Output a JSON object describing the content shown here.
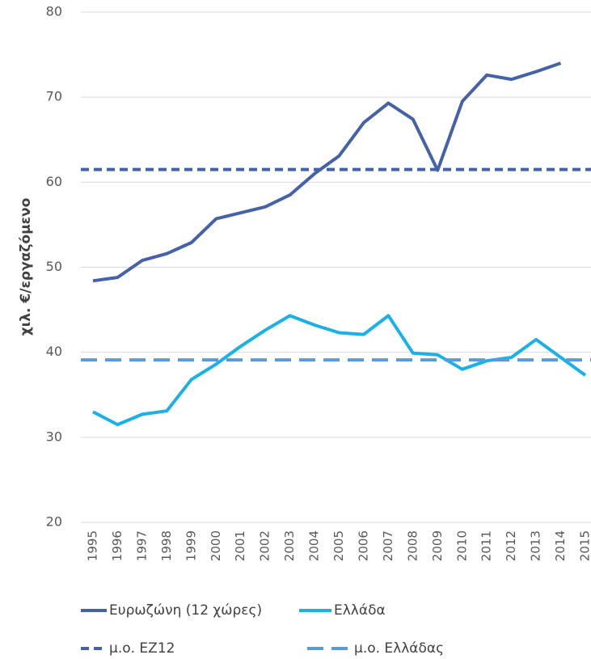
{
  "chart_data": {
    "type": "line",
    "y_label": "χιλ. €/εργαζόμενο",
    "categories": [
      "1995",
      "1996",
      "1997",
      "1998",
      "1999",
      "2000",
      "2001",
      "2002",
      "2003",
      "2004",
      "2005",
      "2006",
      "2007",
      "2008",
      "2009",
      "2010",
      "2011",
      "2012",
      "2013",
      "2014",
      "2015"
    ],
    "series": [
      {
        "name": "Ευρωζώνη (12 χώρες)",
        "color": "#4562a8",
        "dashed": false,
        "values": [
          48.4,
          48.8,
          50.8,
          51.6,
          52.9,
          55.7,
          56.4,
          57.1,
          58.5,
          61.0,
          63.1,
          67.0,
          69.3,
          67.4,
          61.4,
          69.5,
          72.6,
          72.1,
          73.0,
          74.0,
          null
        ]
      },
      {
        "name": "Ελλάδα",
        "color": "#1ab0e8",
        "dashed": false,
        "values": [
          33.0,
          31.5,
          32.7,
          33.1,
          36.8,
          38.6,
          40.7,
          42.6,
          44.3,
          43.2,
          42.3,
          42.1,
          44.3,
          39.9,
          39.7,
          38.0,
          39.0,
          39.4,
          41.5,
          39.4,
          37.3
        ]
      },
      {
        "name": "μ.ο. ΕΖ12",
        "color": "#4562a8",
        "dashed": true,
        "values": [
          61.5,
          61.5,
          61.5,
          61.5,
          61.5,
          61.5,
          61.5,
          61.5,
          61.5,
          61.5,
          61.5,
          61.5,
          61.5,
          61.5,
          61.5,
          61.5,
          61.5,
          61.5,
          61.5,
          61.5,
          61.5
        ]
      },
      {
        "name": "μ.ο. Ελλάδας",
        "color": "#5a9bd5",
        "dashed": true,
        "values": [
          39.1,
          39.1,
          39.1,
          39.1,
          39.1,
          39.1,
          39.1,
          39.1,
          39.1,
          39.1,
          39.1,
          39.1,
          39.1,
          39.1,
          39.1,
          39.1,
          39.1,
          39.1,
          39.1,
          39.1,
          39.1
        ]
      }
    ],
    "ylim": [
      20,
      80
    ],
    "yticks": [
      20,
      30,
      40,
      50,
      60,
      70,
      80
    ],
    "grid": true,
    "legend": "bottom"
  }
}
